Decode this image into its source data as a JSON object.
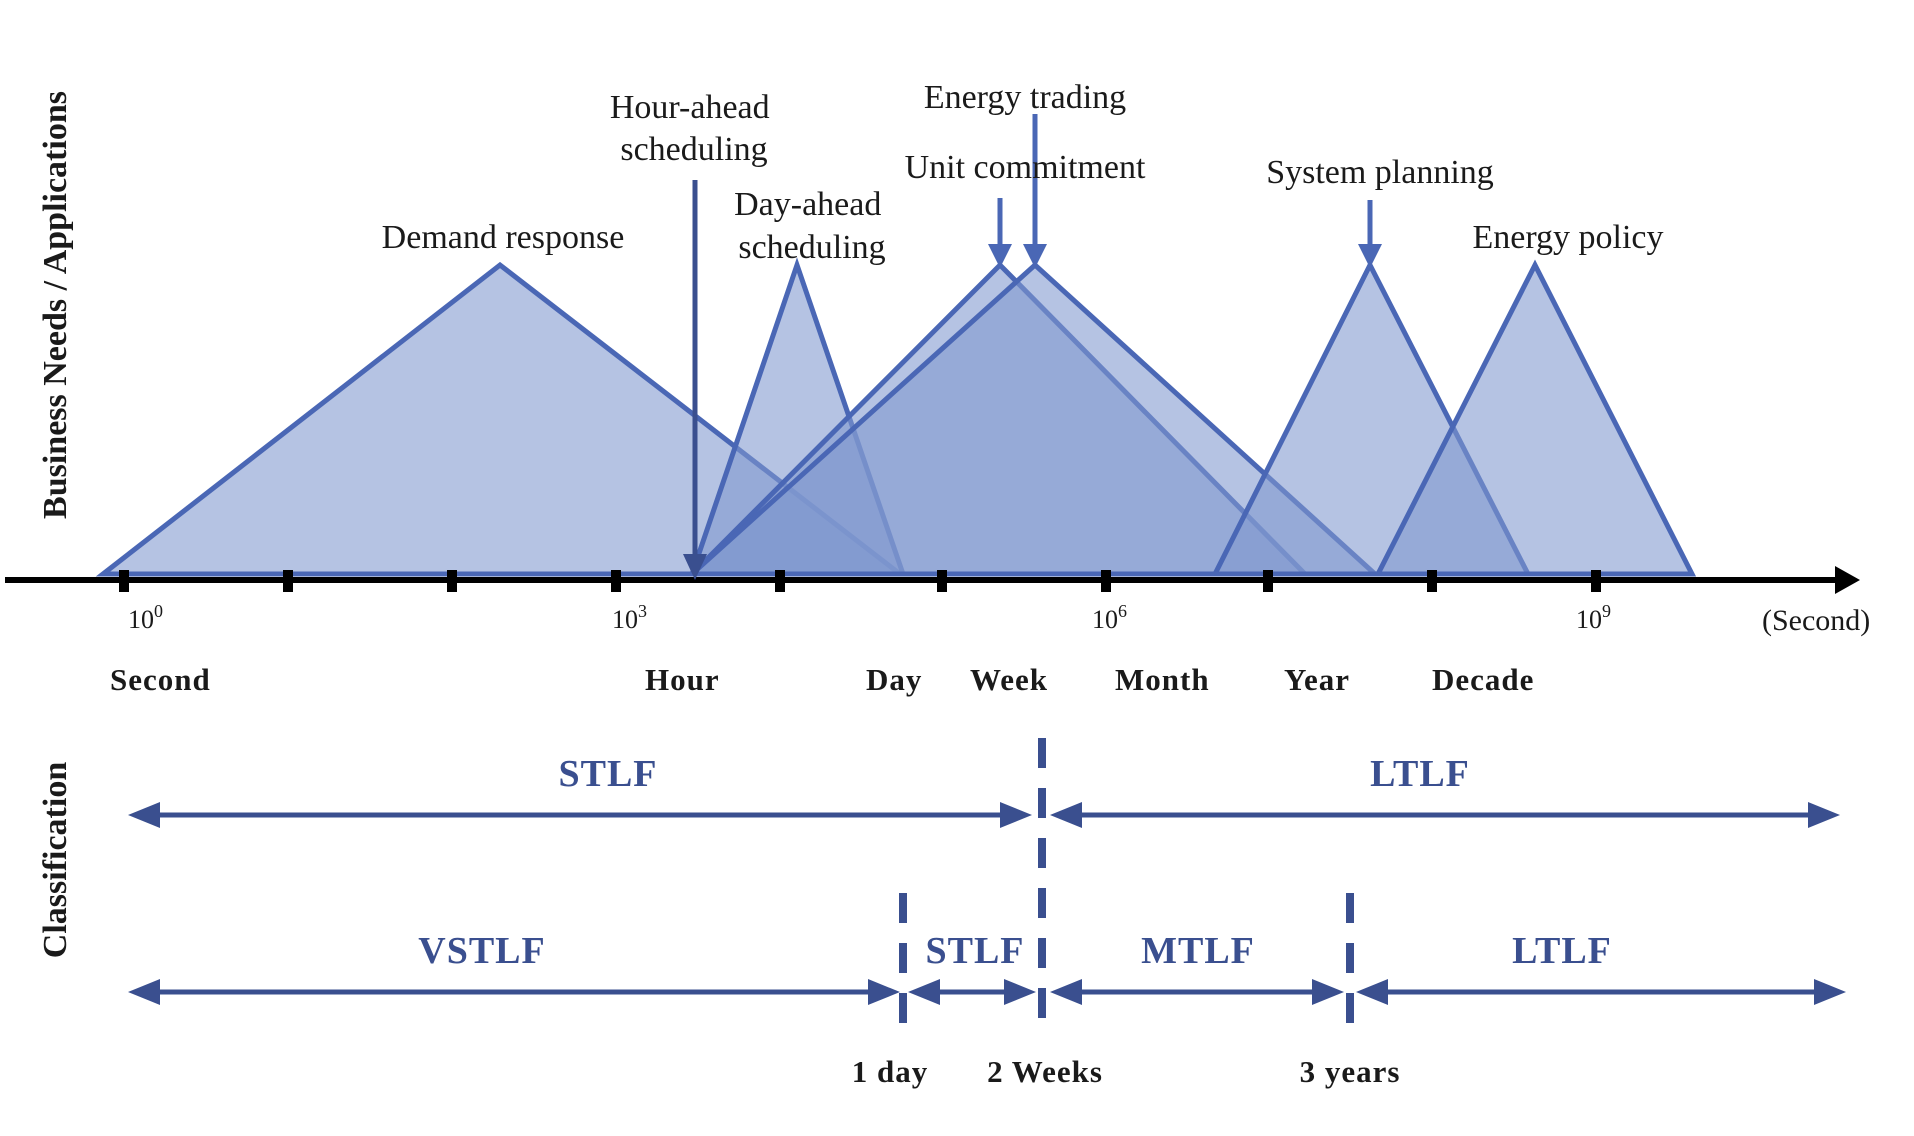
{
  "y_axis_labels": {
    "top": "Business Needs / Applications",
    "bottom": "Classification"
  },
  "axis": {
    "unit": "(Second)",
    "exponent_ticks": [
      {
        "base": "10",
        "exp": "0"
      },
      {
        "base": "10",
        "exp": "3"
      },
      {
        "base": "10",
        "exp": "6"
      },
      {
        "base": "10",
        "exp": "9"
      }
    ],
    "time_scales": [
      "Second",
      "Hour",
      "Day",
      "Week",
      "Month",
      "Year",
      "Decade"
    ]
  },
  "applications": [
    {
      "name": "Demand response",
      "range_seconds": [
        "10^-0.15",
        "10^4.7"
      ],
      "peak": "10^2.3"
    },
    {
      "name": "Hour-ahead scheduling",
      "range_seconds": [
        "10^3.5",
        "10^3.5"
      ],
      "peak": "10^3.5"
    },
    {
      "name": "Day-ahead scheduling",
      "range_seconds": [
        "10^3.5",
        "10^4.75"
      ],
      "peak": "10^4.1"
    },
    {
      "name": "Unit commitment",
      "range_seconds": [
        "10^3.5",
        "10^7.2"
      ],
      "peak": "10^5.6"
    },
    {
      "name": "Energy trading",
      "range_seconds": [
        "10^3.5",
        "10^7.7"
      ],
      "peak": "10^5.8"
    },
    {
      "name": "System planning",
      "range_seconds": [
        "10^6.7",
        "10^8.7"
      ],
      "peak": "10^7.7"
    },
    {
      "name": "Energy policy",
      "range_seconds": [
        "10^7.7",
        "10^9.6"
      ],
      "peak": "10^8.7"
    }
  ],
  "classification_row1": [
    "STLF",
    "LTLF"
  ],
  "classification_row2": [
    "VSTLF",
    "STLF",
    "MTLF",
    "LTLF"
  ],
  "boundaries": [
    "1 day",
    "2 Weeks",
    "3 years"
  ],
  "colors": {
    "fill": "#7f97cf",
    "stroke": "#4a67b5",
    "arrow": "#3a4f8f",
    "axis": "#000000"
  }
}
